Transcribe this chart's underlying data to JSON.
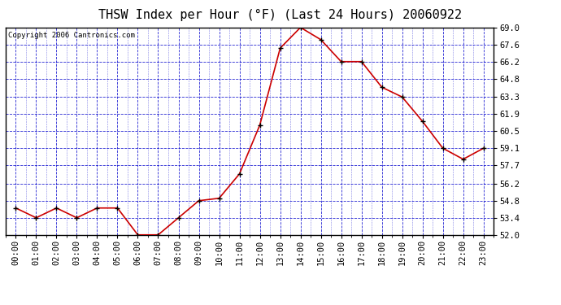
{
  "title": "THSW Index per Hour (°F) (Last 24 Hours) 20060922",
  "copyright": "Copyright 2006 Cantronics.com",
  "x_labels": [
    "00:00",
    "01:00",
    "02:00",
    "03:00",
    "04:00",
    "05:00",
    "06:00",
    "07:00",
    "08:00",
    "09:00",
    "10:00",
    "11:00",
    "12:00",
    "13:00",
    "14:00",
    "15:00",
    "16:00",
    "17:00",
    "18:00",
    "19:00",
    "20:00",
    "21:00",
    "22:00",
    "23:00"
  ],
  "y_values": [
    54.2,
    53.4,
    54.2,
    53.4,
    54.2,
    54.2,
    52.0,
    52.0,
    53.4,
    54.8,
    55.0,
    57.0,
    61.0,
    67.3,
    69.0,
    68.0,
    66.2,
    66.2,
    64.1,
    63.3,
    61.3,
    59.1,
    58.2,
    59.1
  ],
  "y_ticks": [
    52.0,
    53.4,
    54.8,
    56.2,
    57.7,
    59.1,
    60.5,
    61.9,
    63.3,
    64.8,
    66.2,
    67.6,
    69.0
  ],
  "ylim": [
    52.0,
    69.0
  ],
  "line_color": "#cc0000",
  "marker_color": "#000000",
  "grid_color": "#0000cc",
  "bg_color": "#ffffff",
  "plot_bg_color": "#ffffff",
  "title_fontsize": 11,
  "copyright_fontsize": 6.5,
  "tick_fontsize": 7.5
}
